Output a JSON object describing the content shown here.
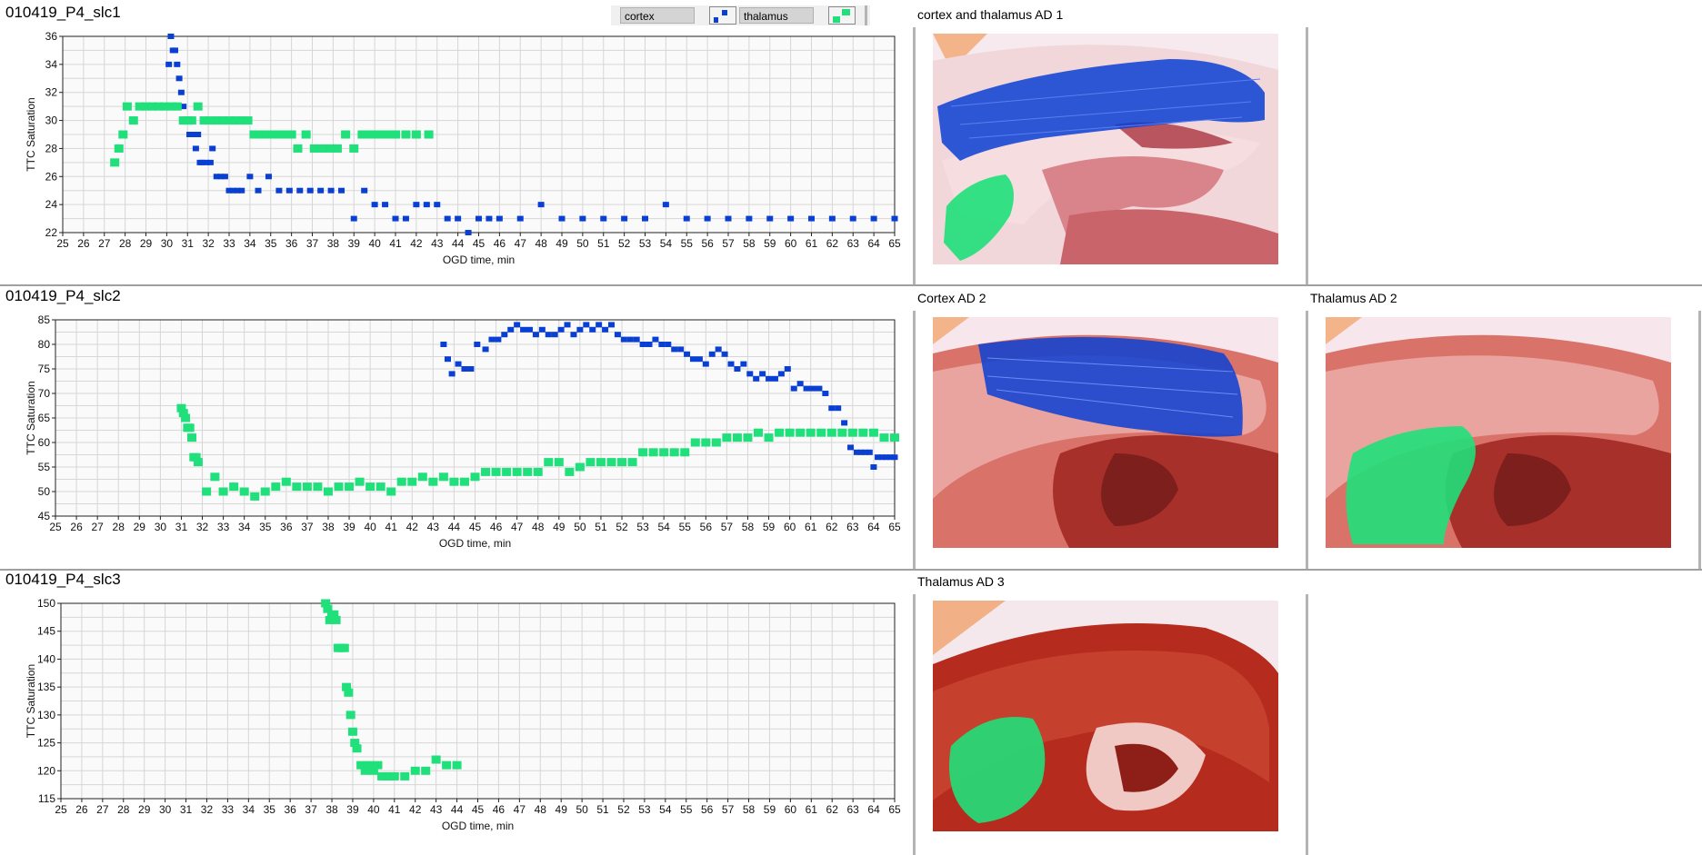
{
  "legend": {
    "entries": [
      {
        "label": "cortex",
        "color": "#0a3fd4"
      },
      {
        "label": "thalamus",
        "color": "#1fe07a"
      }
    ]
  },
  "colors": {
    "cortex": "#0a3fd4",
    "thalamus": "#1fe07a",
    "grid": "#d6d6d6",
    "plot_bg": "#fafafa"
  },
  "panels": [
    {
      "title": "010419_P4_slc1",
      "image_titles": [
        "cortex and thalamus AD 1"
      ]
    },
    {
      "title": "010419_P4_slc2",
      "image_titles": [
        "Cortex AD 2",
        "Thalamus AD 2"
      ]
    },
    {
      "title": "010419_P4_slc3",
      "image_titles": [
        "Thalamus AD 3"
      ]
    }
  ],
  "chart_data": [
    {
      "type": "scatter",
      "title": "010419_P4_slc1",
      "xlabel": "OGD time, min",
      "ylabel": "TTC Saturation",
      "xlim": [
        25,
        65
      ],
      "ylim": [
        22,
        36
      ],
      "xticks": [
        25,
        26,
        27,
        28,
        29,
        30,
        31,
        32,
        33,
        34,
        35,
        36,
        37,
        38,
        39,
        40,
        41,
        42,
        43,
        44,
        45,
        46,
        47,
        48,
        49,
        50,
        51,
        52,
        53,
        54,
        55,
        56,
        57,
        58,
        59,
        60,
        61,
        62,
        63,
        64,
        65
      ],
      "yticks": [
        22,
        24,
        26,
        28,
        30,
        32,
        34,
        36
      ],
      "grid": true,
      "series": [
        {
          "name": "cortex",
          "x": [
            30.1,
            30.2,
            30.3,
            30.4,
            30.5,
            30.6,
            30.7,
            30.8,
            30.9,
            31.0,
            31.1,
            31.3,
            31.4,
            31.5,
            31.6,
            31.7,
            31.9,
            32.1,
            32.2,
            32.4,
            32.6,
            32.8,
            33.0,
            33.2,
            33.4,
            33.6,
            34.0,
            34.4,
            34.9,
            35.4,
            35.9,
            36.4,
            36.9,
            37.4,
            37.9,
            38.4,
            39.0,
            39.5,
            40.0,
            40.5,
            41.0,
            41.5,
            42.0,
            42.5,
            43.0,
            43.5,
            44.0,
            44.5,
            45.0,
            45.5,
            46.0,
            47.0,
            48.0,
            49.0,
            50.0,
            51.0,
            52.0,
            53.0,
            54.0,
            55.0,
            56.0,
            57.0,
            58.0,
            59.0,
            60.0,
            61.0,
            62.0,
            63.0,
            64.0,
            65.0
          ],
          "y": [
            34,
            36,
            35,
            35,
            34,
            33,
            32,
            31,
            30,
            30,
            29,
            29,
            28,
            29,
            27,
            27,
            27,
            27,
            28,
            26,
            26,
            26,
            25,
            25,
            25,
            25,
            26,
            25,
            26,
            25,
            25,
            25,
            25,
            25,
            25,
            25,
            23,
            25,
            24,
            24,
            23,
            23,
            24,
            24,
            24,
            23,
            23,
            22,
            23,
            23,
            23,
            23,
            24,
            23,
            23,
            23,
            23,
            23,
            24,
            23,
            23,
            23,
            23,
            23,
            23,
            23,
            23,
            23,
            23,
            23
          ]
        },
        {
          "name": "thalamus",
          "x": [
            27.5,
            27.7,
            27.9,
            28.1,
            28.4,
            28.7,
            29.0,
            29.3,
            29.6,
            29.9,
            30.2,
            30.5,
            30.8,
            31.0,
            31.2,
            31.5,
            31.8,
            32.1,
            32.4,
            32.7,
            33.0,
            33.3,
            33.6,
            33.9,
            34.2,
            34.5,
            34.8,
            35.1,
            35.4,
            35.7,
            36.0,
            36.3,
            36.7,
            37.1,
            37.5,
            37.9,
            38.2,
            38.6,
            39.0,
            39.4,
            39.8,
            40.2,
            40.6,
            41.0,
            41.5,
            42.0,
            42.6
          ],
          "y": [
            27,
            28,
            29,
            31,
            30,
            31,
            31,
            31,
            31,
            31,
            31,
            31,
            30,
            30,
            30,
            31,
            30,
            30,
            30,
            30,
            30,
            30,
            30,
            30,
            29,
            29,
            29,
            29,
            29,
            29,
            29,
            28,
            29,
            28,
            28,
            28,
            28,
            29,
            28,
            29,
            29,
            29,
            29,
            29,
            29,
            29,
            29
          ]
        }
      ]
    },
    {
      "type": "scatter",
      "title": "010419_P4_slc2",
      "xlabel": "OGD time, min",
      "ylabel": "TTC Saturation",
      "xlim": [
        25,
        65
      ],
      "ylim": [
        45,
        85
      ],
      "xticks": [
        25,
        26,
        27,
        28,
        29,
        30,
        31,
        32,
        33,
        34,
        35,
        36,
        37,
        38,
        39,
        40,
        41,
        42,
        43,
        44,
        45,
        46,
        47,
        48,
        49,
        50,
        51,
        52,
        53,
        54,
        55,
        56,
        57,
        58,
        59,
        60,
        61,
        62,
        63,
        64,
        65
      ],
      "yticks": [
        45,
        50,
        55,
        60,
        65,
        70,
        75,
        80,
        85
      ],
      "grid": true,
      "series": [
        {
          "name": "cortex",
          "x": [
            43.5,
            43.7,
            43.9,
            44.2,
            44.5,
            44.8,
            45.1,
            45.5,
            45.8,
            46.1,
            46.4,
            46.7,
            47.0,
            47.3,
            47.6,
            47.9,
            48.2,
            48.5,
            48.8,
            49.1,
            49.4,
            49.7,
            50.0,
            50.3,
            50.6,
            50.9,
            51.2,
            51.5,
            51.8,
            52.1,
            52.4,
            52.7,
            53.0,
            53.3,
            53.6,
            53.9,
            54.2,
            54.5,
            54.8,
            55.1,
            55.4,
            55.7,
            56.0,
            56.3,
            56.6,
            56.9,
            57.2,
            57.5,
            57.8,
            58.1,
            58.4,
            58.7,
            59.0,
            59.3,
            59.6,
            59.9,
            60.2,
            60.5,
            60.8,
            61.1,
            61.4,
            61.7,
            62.0,
            62.3,
            62.6,
            62.9,
            63.2,
            63.4,
            63.6,
            63.8,
            64.0,
            64.2,
            64.4,
            64.6,
            64.8,
            65.0
          ],
          "y": [
            80,
            77,
            74,
            76,
            75,
            75,
            80,
            79,
            81,
            81,
            82,
            83,
            84,
            83,
            83,
            82,
            83,
            82,
            82,
            83,
            84,
            82,
            83,
            84,
            83,
            84,
            83,
            84,
            82,
            81,
            81,
            81,
            80,
            80,
            81,
            80,
            80,
            79,
            79,
            78,
            77,
            77,
            76,
            78,
            79,
            78,
            76,
            75,
            76,
            74,
            73,
            74,
            73,
            73,
            74,
            75,
            71,
            72,
            71,
            71,
            71,
            70,
            67,
            67,
            64,
            59,
            58,
            58,
            58,
            58,
            55,
            57,
            57,
            57,
            57,
            57
          ]
        },
        {
          "name": "thalamus",
          "x": [
            31.0,
            31.1,
            31.2,
            31.3,
            31.4,
            31.5,
            31.6,
            31.7,
            31.8,
            32.2,
            32.6,
            33.0,
            33.5,
            34.0,
            34.5,
            35.0,
            35.5,
            36.0,
            36.5,
            37.0,
            37.5,
            38.0,
            38.5,
            39.0,
            39.5,
            40.0,
            40.5,
            41.0,
            41.5,
            42.0,
            42.5,
            43.0,
            43.5,
            44.0,
            44.5,
            45.0,
            45.5,
            46.0,
            46.5,
            47.0,
            47.5,
            48.0,
            48.5,
            49.0,
            49.5,
            50.0,
            50.5,
            51.0,
            51.5,
            52.0,
            52.5,
            53.0,
            53.5,
            54.0,
            54.5,
            55.0,
            55.5,
            56.0,
            56.5,
            57.0,
            57.5,
            58.0,
            58.5,
            59.0,
            59.5,
            60.0,
            60.5,
            61.0,
            61.5,
            62.0,
            62.5,
            63.0,
            63.5,
            64.0,
            64.5,
            65.0
          ],
          "y": [
            67,
            66,
            65,
            63,
            63,
            61,
            57,
            57,
            56,
            50,
            53,
            50,
            51,
            50,
            49,
            50,
            51,
            52,
            51,
            51,
            51,
            50,
            51,
            51,
            52,
            51,
            51,
            50,
            52,
            52,
            53,
            52,
            53,
            52,
            52,
            53,
            54,
            54,
            54,
            54,
            54,
            54,
            56,
            56,
            54,
            55,
            56,
            56,
            56,
            56,
            56,
            58,
            58,
            58,
            58,
            58,
            60,
            60,
            60,
            61,
            61,
            61,
            62,
            61,
            62,
            62,
            62,
            62,
            62,
            62,
            62,
            62,
            62,
            62,
            61,
            61
          ]
        }
      ]
    },
    {
      "type": "scatter",
      "title": "010419_P4_slc3",
      "xlabel": "OGD time, min",
      "ylabel": "TTC Saturation",
      "xlim": [
        25,
        65
      ],
      "ylim": [
        115,
        150
      ],
      "xticks": [
        25,
        26,
        27,
        28,
        29,
        30,
        31,
        32,
        33,
        34,
        35,
        36,
        37,
        38,
        39,
        40,
        41,
        42,
        43,
        44,
        45,
        46,
        47,
        48,
        49,
        50,
        51,
        52,
        53,
        54,
        55,
        56,
        57,
        58,
        59,
        60,
        61,
        62,
        63,
        64,
        65
      ],
      "yticks": [
        115,
        120,
        125,
        130,
        135,
        140,
        145,
        150
      ],
      "grid": true,
      "series": [
        {
          "name": "thalamus",
          "x": [
            37.7,
            37.8,
            37.9,
            38.0,
            38.1,
            38.2,
            38.3,
            38.4,
            38.5,
            38.6,
            38.7,
            38.8,
            38.9,
            39.0,
            39.1,
            39.2,
            39.4,
            39.6,
            39.8,
            40.0,
            40.2,
            40.4,
            40.6,
            40.8,
            41.0,
            41.5,
            42.0,
            42.5,
            43.0,
            43.5,
            44.0
          ],
          "y": [
            150,
            149,
            147,
            148,
            148,
            147,
            142,
            142,
            142,
            142,
            135,
            134,
            130,
            127,
            125,
            124,
            121,
            120,
            121,
            120,
            121,
            119,
            119,
            119,
            119,
            119,
            120,
            120,
            122,
            121,
            121
          ]
        }
      ]
    }
  ]
}
